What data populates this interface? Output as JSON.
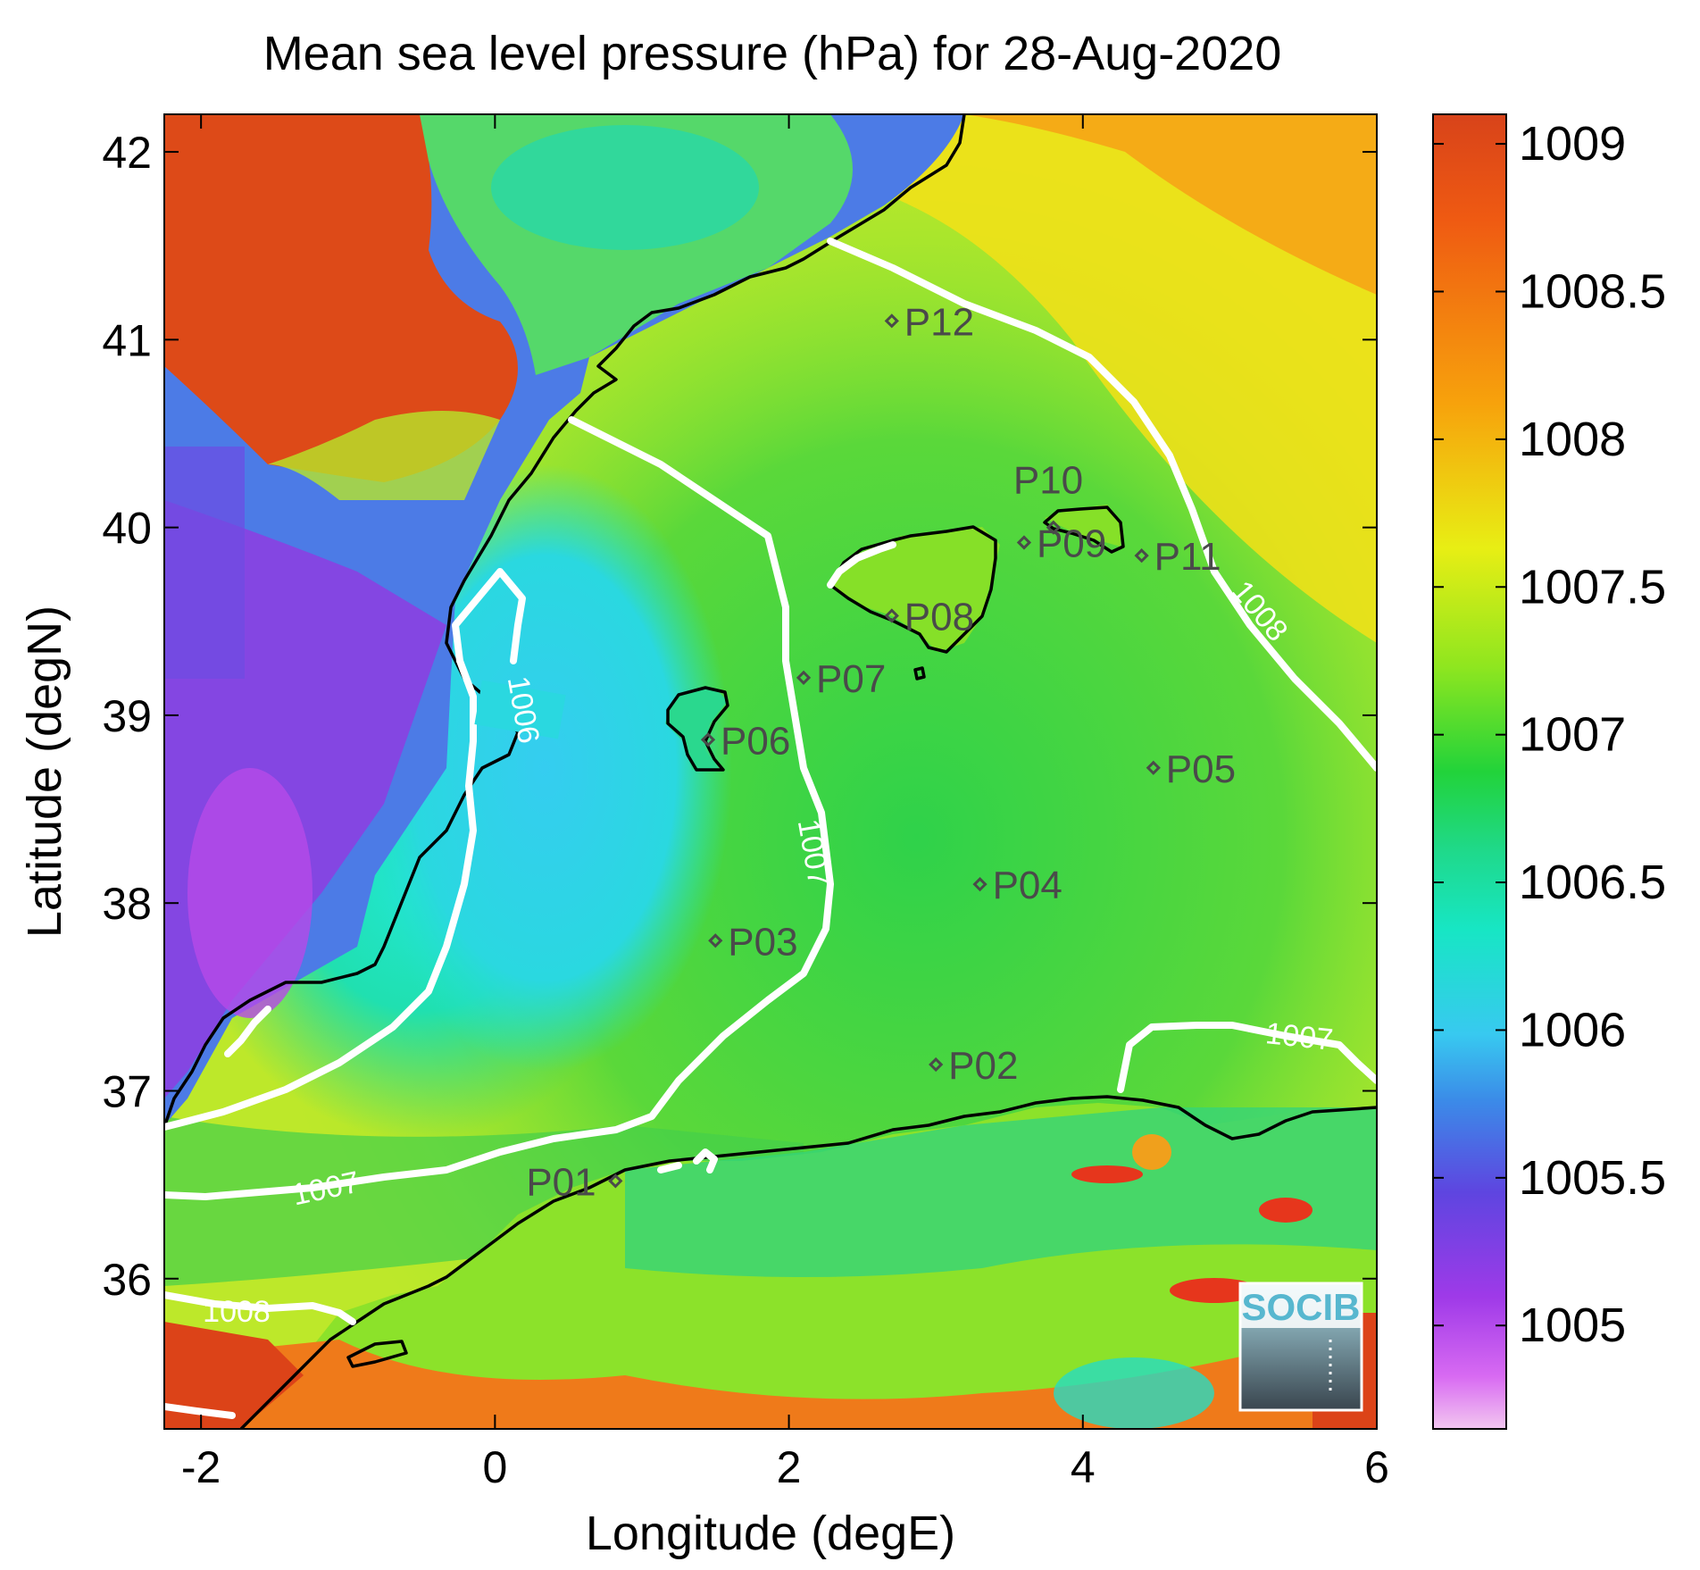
{
  "title": "Mean sea level pressure (hPa) for 28-Aug-2020",
  "xlabel": "Longitude (degE)",
  "ylabel": "Latitude (degN)",
  "x_ticks": [
    "-2",
    "0",
    "2",
    "4",
    "6"
  ],
  "y_ticks": [
    "42",
    "41",
    "40",
    "39",
    "38",
    "37",
    "36"
  ],
  "colorbar": {
    "ticks": [
      "1009",
      "1008.5",
      "1008",
      "1007.5",
      "1007",
      "1006.5",
      "1006",
      "1005.5",
      "1005"
    ],
    "range": [
      1004.65,
      1009.1
    ]
  },
  "contour_labels": [
    "1006",
    "1007",
    "1007",
    "1007",
    "1008",
    "1008"
  ],
  "stations": [
    {
      "id": "P01",
      "lon": 0.82,
      "lat": 36.52
    },
    {
      "id": "P02",
      "lon": 3.0,
      "lat": 37.14
    },
    {
      "id": "P03",
      "lon": 1.5,
      "lat": 37.8
    },
    {
      "id": "P04",
      "lon": 3.3,
      "lat": 38.1
    },
    {
      "id": "P05",
      "lon": 4.48,
      "lat": 38.72
    },
    {
      "id": "P06",
      "lon": 1.45,
      "lat": 38.87
    },
    {
      "id": "P07",
      "lon": 2.1,
      "lat": 39.2
    },
    {
      "id": "P08",
      "lon": 2.7,
      "lat": 39.53
    },
    {
      "id": "P09",
      "lon": 3.6,
      "lat": 39.92
    },
    {
      "id": "P10",
      "lon": 3.8,
      "lat": 40.0
    },
    {
      "id": "P11",
      "lon": 4.4,
      "lat": 39.85
    },
    {
      "id": "P12",
      "lon": 2.7,
      "lat": 41.1
    }
  ],
  "logo": "SOCIB",
  "colors": {
    "contour": "#ffffff",
    "coastline": "#000000",
    "station_marker": "#4a4a4a"
  }
}
